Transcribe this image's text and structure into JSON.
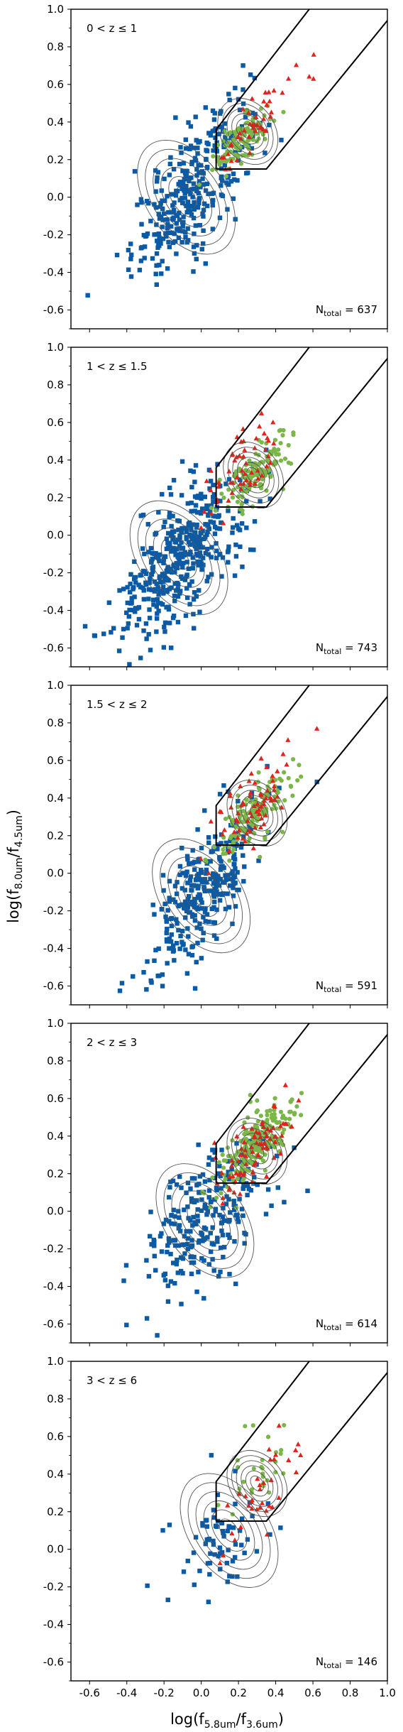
{
  "figure": {
    "ylabel_html": "log(f<sub>8.0um</sub>/f<sub>4.5um</sub>)",
    "xlabel_html": "log(f<sub>5.8um</sub>/f<sub>3.6um</sub>)"
  },
  "colors": {
    "agn_candidates": "#0a5aa5",
    "green_points": "#7ab648",
    "red_triangles": "#e0231c",
    "contours": "#555555",
    "wedge": "#000000"
  },
  "chart_data": [
    {
      "type": "scatter",
      "panel_label": "0 < z ≤ 1",
      "n_total_text": "N",
      "n_total_sub": "total",
      "n_total_value": "= 637",
      "xlim": [
        -0.7,
        1.0
      ],
      "ylim": [
        -0.7,
        1.0
      ],
      "xticks": [
        "-0.6",
        "-0.4",
        "-0.2",
        "0.0",
        "0.2",
        "0.4",
        "0.6",
        "0.8",
        "1.0"
      ],
      "yticks": [
        "1.0",
        "0.8",
        "0.6",
        "0.4",
        "0.2",
        "0.0",
        "-0.2",
        "-0.4",
        "-0.6"
      ],
      "series": [
        {
          "marker": "square",
          "color": "#0a5aa5",
          "center": [
            -0.05,
            0.05
          ],
          "spread": [
            0.16,
            0.24
          ],
          "corr": 0.75,
          "count": 330
        },
        {
          "marker": "circle",
          "color": "#7ab648",
          "center": [
            0.22,
            0.3
          ],
          "spread": [
            0.08,
            0.08
          ],
          "corr": 0.7,
          "count": 110
        },
        {
          "marker": "triangle",
          "color": "#e0231c",
          "center": [
            0.28,
            0.38
          ],
          "spread": [
            0.12,
            0.14
          ],
          "corr": 0.7,
          "count": 45
        }
      ],
      "contour_centers": [
        [
          -0.08,
          0.0
        ],
        [
          0.25,
          0.35
        ]
      ]
    },
    {
      "type": "scatter",
      "panel_label": "1 < z ≤ 1.5",
      "n_total_text": "N",
      "n_total_sub": "total",
      "n_total_value": "= 743",
      "xlim": [
        -0.7,
        1.0
      ],
      "ylim": [
        -0.7,
        1.0
      ],
      "xticks": [
        "-0.6",
        "-0.4",
        "-0.2",
        "0.0",
        "0.2",
        "0.4",
        "0.6",
        "0.8",
        "1.0"
      ],
      "yticks": [
        "1.0",
        "0.8",
        "0.6",
        "0.4",
        "0.2",
        "0.0",
        "-0.2",
        "-0.4",
        "-0.6"
      ],
      "series": [
        {
          "marker": "square",
          "color": "#0a5aa5",
          "center": [
            -0.1,
            -0.1
          ],
          "spread": [
            0.17,
            0.22
          ],
          "corr": 0.65,
          "count": 420
        },
        {
          "marker": "circle",
          "color": "#7ab648",
          "center": [
            0.28,
            0.32
          ],
          "spread": [
            0.09,
            0.09
          ],
          "corr": 0.7,
          "count": 130
        },
        {
          "marker": "triangle",
          "color": "#e0231c",
          "center": [
            0.22,
            0.35
          ],
          "spread": [
            0.11,
            0.13
          ],
          "corr": 0.6,
          "count": 55
        }
      ],
      "contour_centers": [
        [
          -0.12,
          -0.12
        ],
        [
          0.28,
          0.32
        ]
      ]
    },
    {
      "type": "scatter",
      "panel_label": "1.5 < z ≤ 2",
      "n_total_text": "N",
      "n_total_sub": "total",
      "n_total_value": "= 591",
      "xlim": [
        -0.7,
        1.0
      ],
      "ylim": [
        -0.7,
        1.0
      ],
      "xticks": [
        "-0.6",
        "-0.4",
        "-0.2",
        "0.0",
        "0.2",
        "0.4",
        "0.6",
        "0.8",
        "1.0"
      ],
      "yticks": [
        "1.0",
        "0.8",
        "0.6",
        "0.4",
        "0.2",
        "0.0",
        "-0.2",
        "-0.4",
        "-0.6"
      ],
      "series": [
        {
          "marker": "square",
          "color": "#0a5aa5",
          "center": [
            0.0,
            -0.1
          ],
          "spread": [
            0.14,
            0.22
          ],
          "corr": 0.7,
          "count": 300
        },
        {
          "marker": "circle",
          "color": "#7ab648",
          "center": [
            0.28,
            0.32
          ],
          "spread": [
            0.09,
            0.1
          ],
          "corr": 0.75,
          "count": 150
        },
        {
          "marker": "triangle",
          "color": "#e0231c",
          "center": [
            0.3,
            0.38
          ],
          "spread": [
            0.12,
            0.14
          ],
          "corr": 0.7,
          "count": 70
        }
      ],
      "contour_centers": [
        [
          0.0,
          -0.12
        ],
        [
          0.3,
          0.32
        ]
      ]
    },
    {
      "type": "scatter",
      "panel_label": "2 < z ≤ 3",
      "n_total_text": "N",
      "n_total_sub": "total",
      "n_total_value": "= 614",
      "xlim": [
        -0.7,
        1.0
      ],
      "ylim": [
        -0.7,
        1.0
      ],
      "xticks": [
        "-0.6",
        "-0.4",
        "-0.2",
        "0.0",
        "0.2",
        "0.4",
        "0.6",
        "0.8",
        "1.0"
      ],
      "yticks": [
        "1.0",
        "0.8",
        "0.6",
        "0.4",
        "0.2",
        "0.0",
        "-0.2",
        "-0.4",
        "-0.6"
      ],
      "series": [
        {
          "marker": "square",
          "color": "#0a5aa5",
          "center": [
            0.0,
            -0.05
          ],
          "spread": [
            0.17,
            0.2
          ],
          "corr": 0.5,
          "count": 250
        },
        {
          "marker": "circle",
          "color": "#7ab648",
          "center": [
            0.3,
            0.35
          ],
          "spread": [
            0.1,
            0.12
          ],
          "corr": 0.75,
          "count": 210
        },
        {
          "marker": "triangle",
          "color": "#e0231c",
          "center": [
            0.28,
            0.32
          ],
          "spread": [
            0.11,
            0.13
          ],
          "corr": 0.7,
          "count": 80
        }
      ],
      "contour_centers": [
        [
          0.02,
          -0.05
        ],
        [
          0.3,
          0.32
        ]
      ]
    },
    {
      "type": "scatter",
      "panel_label": "3 < z ≤ 6",
      "n_total_text": "N",
      "n_total_sub": "total",
      "n_total_value": "= 146",
      "xlim": [
        -0.7,
        1.0
      ],
      "ylim": [
        -0.7,
        1.0
      ],
      "xticks": [
        "-0.6",
        "-0.4",
        "-0.2",
        "0.0",
        "0.2",
        "0.4",
        "0.6",
        "0.8",
        "1.0"
      ],
      "yticks": [
        "1.0",
        "0.8",
        "0.6",
        "0.4",
        "0.2",
        "0.0",
        "-0.2",
        "-0.4",
        "-0.6"
      ],
      "series": [
        {
          "marker": "square",
          "color": "#0a5aa5",
          "center": [
            0.1,
            0.05
          ],
          "spread": [
            0.14,
            0.15
          ],
          "corr": 0.4,
          "count": 70
        },
        {
          "marker": "circle",
          "color": "#7ab648",
          "center": [
            0.3,
            0.4
          ],
          "spread": [
            0.1,
            0.14
          ],
          "corr": 0.6,
          "count": 30
        },
        {
          "marker": "triangle",
          "color": "#e0231c",
          "center": [
            0.32,
            0.3
          ],
          "spread": [
            0.1,
            0.15
          ],
          "corr": 0.6,
          "count": 35
        }
      ],
      "contour_centers": [
        [
          0.15,
          0.1
        ],
        [
          0.3,
          0.35
        ]
      ]
    }
  ]
}
